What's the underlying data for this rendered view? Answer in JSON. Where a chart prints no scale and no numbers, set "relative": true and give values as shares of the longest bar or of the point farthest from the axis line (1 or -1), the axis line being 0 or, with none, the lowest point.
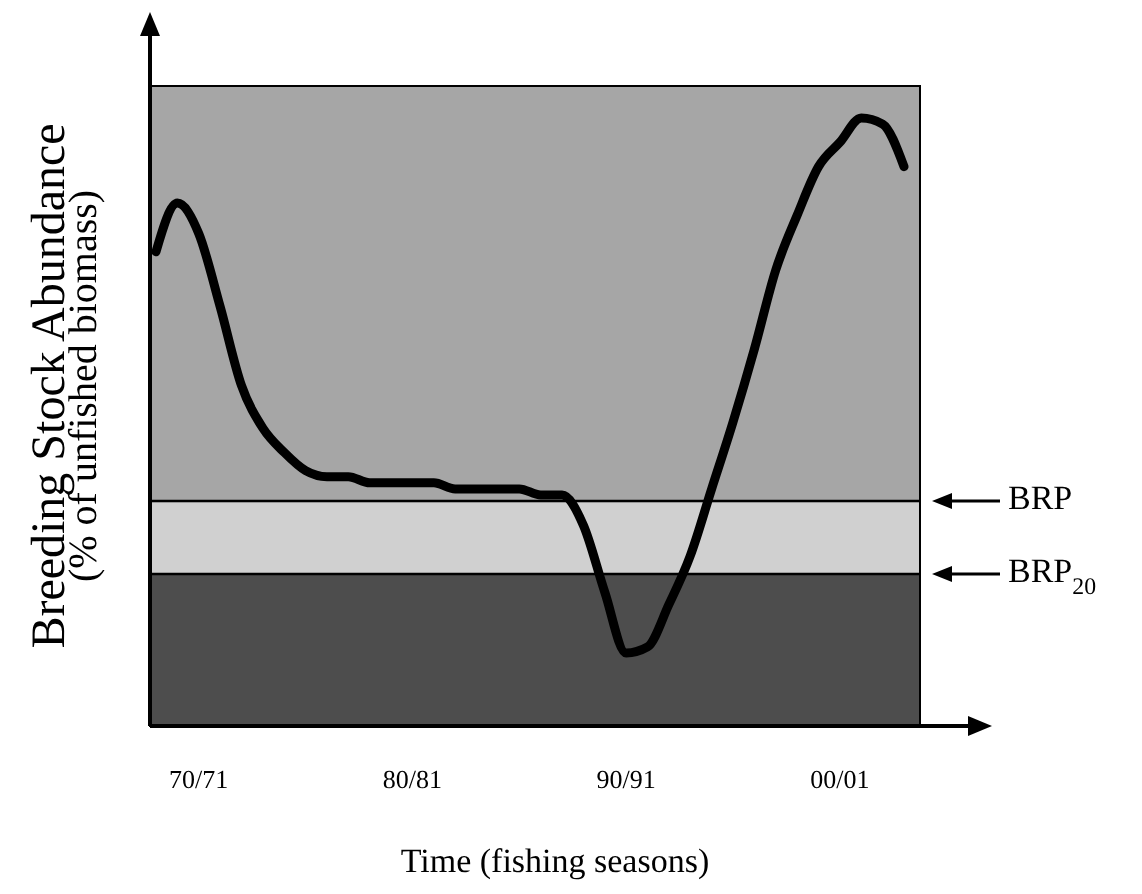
{
  "chart_data": {
    "type": "line",
    "relative": true,
    "xlabel": "Time (fishing seasons)",
    "ylabel": "Breeding Stock Abundance\n(% of unfished biomass)",
    "categories": [
      null,
      null,
      "70/71",
      null,
      null,
      null,
      null,
      null,
      null,
      null,
      null,
      null,
      "80/81",
      null,
      null,
      null,
      null,
      null,
      null,
      null,
      null,
      null,
      "90/91",
      null,
      null,
      null,
      null,
      null,
      null,
      null,
      null,
      null,
      "00/01",
      null,
      null,
      null
    ],
    "series": [
      {
        "color": "#000000",
        "values": [
          0.78,
          0.86,
          0.81,
          0.69,
          0.56,
          0.49,
          0.45,
          0.42,
          0.41,
          0.41,
          0.4,
          0.4,
          0.4,
          0.4,
          0.39,
          0.39,
          0.39,
          0.39,
          0.38,
          0.38,
          0.33,
          0.22,
          0.12,
          0.13,
          0.2,
          0.28,
          0.39,
          0.5,
          0.62,
          0.75,
          0.84,
          0.92,
          0.96,
          1,
          0.99,
          0.92
        ]
      }
    ],
    "bands": [
      {
        "axis": "y",
        "from": 0,
        "to": 0.25,
        "color": "#4d4d4d"
      },
      {
        "axis": "y",
        "from": 0.25,
        "to": 0.37,
        "color": "#d0d0d0"
      }
    ],
    "ref_lines": [
      {
        "axis": "y",
        "value": 0.37,
        "label": "BRP"
      },
      {
        "axis": "y",
        "value": 0.25,
        "label": "BRP$_{20}$"
      }
    ],
    "grid": false,
    "marker": "none",
    "line_style": "solid"
  }
}
